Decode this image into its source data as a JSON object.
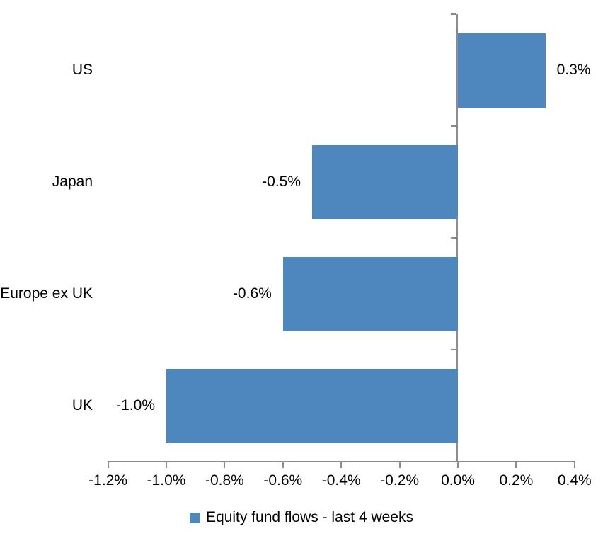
{
  "chart_data": {
    "type": "bar",
    "orientation": "horizontal",
    "title": "",
    "categories": [
      "US",
      "Japan",
      "Europe ex UK",
      "UK"
    ],
    "values": [
      0.3,
      -0.5,
      -0.6,
      -1.0
    ],
    "data_labels": [
      "0.3%",
      "-0.5%",
      "-0.6%",
      "-1.0%"
    ],
    "series": [
      {
        "name": "Equity fund flows - last 4 weeks",
        "values": [
          0.3,
          -0.5,
          -0.6,
          -1.0
        ]
      }
    ],
    "xlabel": "",
    "ylabel": "",
    "units": "percent",
    "xlim": [
      -1.2,
      0.4
    ],
    "xtick_values": [
      -1.2,
      -1.0,
      -0.8,
      -0.6,
      -0.4,
      -0.2,
      0.0,
      0.2,
      0.4
    ],
    "xtick_labels": [
      "-1.2%",
      "-1.0%",
      "-0.8%",
      "-0.6%",
      "-0.4%",
      "-0.2%",
      "0.0%",
      "0.2%",
      "0.4%"
    ],
    "grid": false,
    "legend": {
      "position": "bottom",
      "entries": [
        {
          "label": "Equity fund flows - last 4 weeks",
          "swatch_color": "#4E86BE"
        }
      ]
    },
    "colors": {
      "bar": "#4E86BE",
      "axis": "#8B8B8B",
      "text": "#000000",
      "background": "#FFFFFF"
    }
  }
}
